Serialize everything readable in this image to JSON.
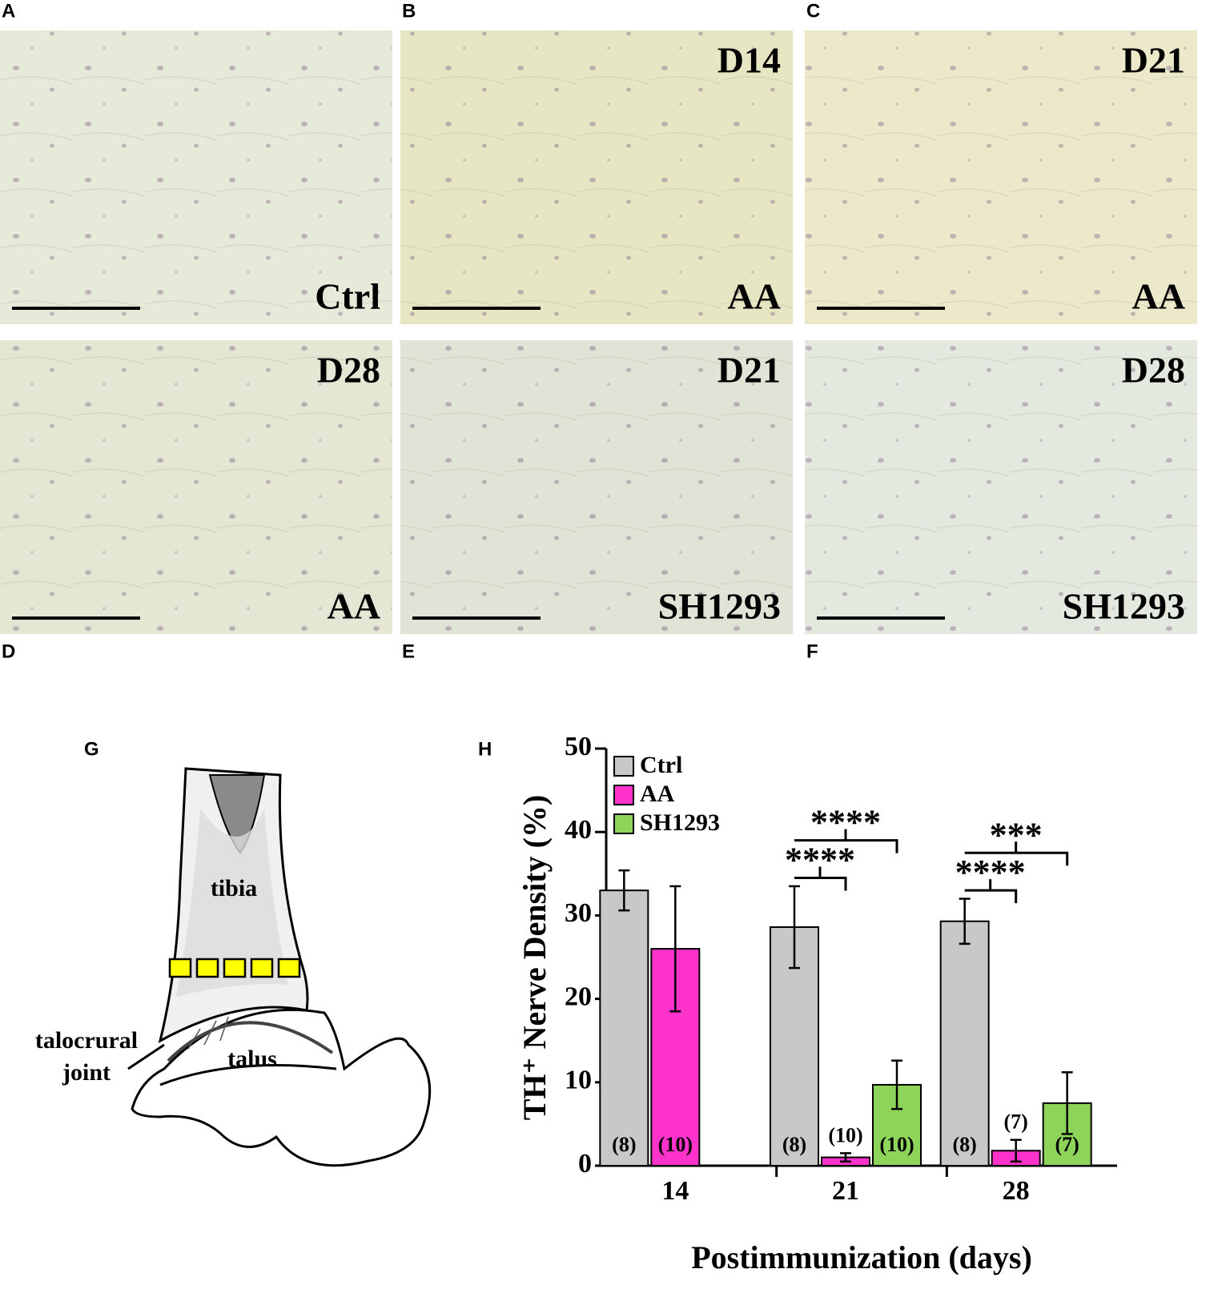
{
  "panels": [
    {
      "letter": "A",
      "bottom_label": "Ctrl"
    },
    {
      "letter": "B",
      "top_label": "D14",
      "bottom_label": "AA"
    },
    {
      "letter": "C",
      "top_label": "D21",
      "bottom_label": "AA"
    },
    {
      "letter": "D",
      "top_label": "D28",
      "bottom_label": "AA"
    },
    {
      "letter": "E",
      "top_label": "D21",
      "bottom_label": "SH1293"
    },
    {
      "letter": "F",
      "top_label": "D28",
      "bottom_label": "SH1293"
    }
  ],
  "diagram": {
    "letter": "G",
    "labels": [
      "tibia",
      "talus",
      "talocrural",
      "joint"
    ]
  },
  "chart_data": {
    "type": "bar",
    "letter": "H",
    "y_label": "TH⁺ Nerve Density (%)",
    "x_label": "Postimmunization (days)",
    "categories": [
      "14",
      "21",
      "28"
    ],
    "series": [
      {
        "name": "Ctrl",
        "color": "#c8c8c8",
        "values": [
          33,
          28.6,
          29.3
        ],
        "errors": [
          2.4,
          4.9,
          2.7
        ],
        "n_labels": [
          "(8)",
          "(8)",
          "(8)"
        ]
      },
      {
        "name": "AA",
        "color": "#ff33cc",
        "values": [
          26,
          1,
          1.8
        ],
        "errors": [
          7.5,
          0.5,
          1.3
        ],
        "n_labels": [
          "(10)",
          "(10)",
          "(7)"
        ]
      },
      {
        "name": "SH1293",
        "color": "#8fd45a",
        "values": [
          null,
          9.7,
          7.5
        ],
        "errors": [
          null,
          2.9,
          3.7
        ],
        "n_labels": [
          null,
          "(10)",
          "(7)"
        ]
      }
    ],
    "annotations": [
      {
        "text": "****",
        "category": "21",
        "pair": [
          "Ctrl",
          "AA"
        ]
      },
      {
        "text": "****",
        "category": "21",
        "pair": [
          "Ctrl",
          "SH1293"
        ]
      },
      {
        "text": "****",
        "category": "28",
        "pair": [
          "Ctrl",
          "AA"
        ]
      },
      {
        "text": "***",
        "category": "28",
        "pair": [
          "Ctrl",
          "SH1293"
        ]
      }
    ],
    "ylim": [
      0,
      50
    ],
    "yticks": [
      0,
      10,
      20,
      30,
      40,
      50
    ],
    "legend": "top-left"
  }
}
